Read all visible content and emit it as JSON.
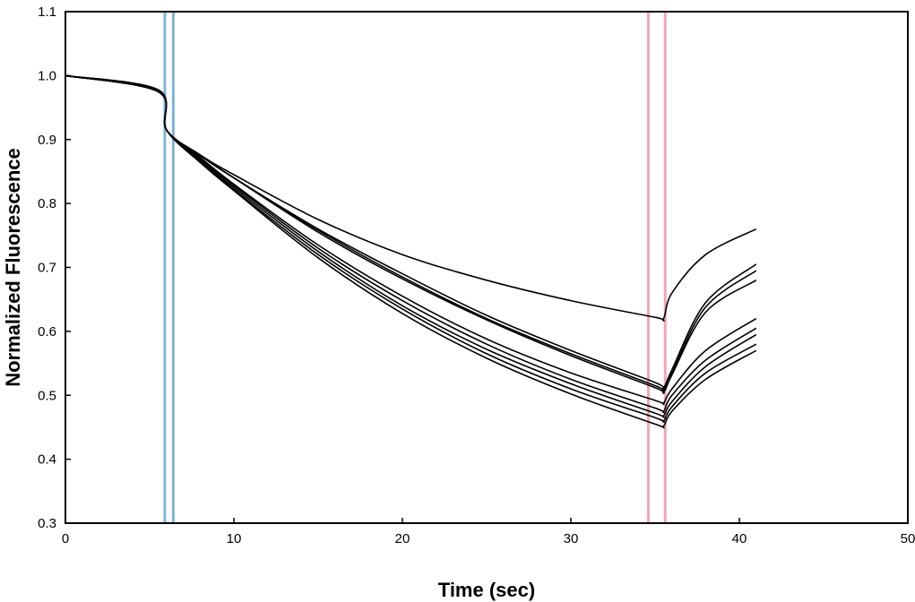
{
  "chart_data": {
    "type": "line",
    "title": "",
    "xlabel": "Time (sec)",
    "ylabel": "Normalized Fluorescence",
    "xlim": [
      0,
      50
    ],
    "ylim": [
      0.3,
      1.1
    ],
    "x_ticks": [
      0,
      10,
      20,
      30,
      40,
      50
    ],
    "y_ticks": [
      0.3,
      0.4,
      0.5,
      0.6,
      0.7,
      0.8,
      0.9,
      1.0,
      1.1
    ],
    "x_tick_labels": [
      "0",
      "10",
      "20",
      "30",
      "40",
      "50"
    ],
    "y_tick_labels": [
      "0.3",
      "0.4",
      "0.5",
      "0.6",
      "0.7",
      "0.8",
      "0.9",
      "1.0",
      "1.1"
    ],
    "grid": false,
    "legend": "none",
    "colors": {
      "series": "#000000",
      "blue_marker": "#7fb5d9",
      "pink_marker": "#f2a6b3"
    },
    "vertical_markers": [
      {
        "x": 5.9,
        "color": "#7fb5d9"
      },
      {
        "x": 6.4,
        "color": "#7fb5d9"
      },
      {
        "x": 34.6,
        "color": "#f2a6b3"
      },
      {
        "x": 35.6,
        "color": "#f2a6b3"
      }
    ],
    "series": [
      {
        "values": [
          [
            0,
            1.0
          ],
          [
            5.5,
            0.978
          ],
          [
            6,
            0.915
          ],
          [
            8,
            0.875
          ],
          [
            10,
            0.84
          ],
          [
            15,
            0.76
          ],
          [
            20,
            0.69
          ],
          [
            25,
            0.625
          ],
          [
            30,
            0.57
          ],
          [
            35,
            0.52
          ],
          [
            35.5,
            0.512
          ],
          [
            36,
            0.54
          ],
          [
            38,
            0.645
          ],
          [
            41,
            0.705
          ]
        ]
      },
      {
        "values": [
          [
            0,
            1.0
          ],
          [
            5.5,
            0.977
          ],
          [
            6,
            0.915
          ],
          [
            8,
            0.875
          ],
          [
            10,
            0.84
          ],
          [
            15,
            0.758
          ],
          [
            20,
            0.685
          ],
          [
            25,
            0.62
          ],
          [
            30,
            0.565
          ],
          [
            35,
            0.515
          ],
          [
            35.5,
            0.508
          ],
          [
            36,
            0.535
          ],
          [
            38,
            0.638
          ],
          [
            41,
            0.695
          ]
        ]
      },
      {
        "values": [
          [
            0,
            1.0
          ],
          [
            5.5,
            0.976
          ],
          [
            6,
            0.915
          ],
          [
            8,
            0.875
          ],
          [
            10,
            0.84
          ],
          [
            15,
            0.755
          ],
          [
            20,
            0.682
          ],
          [
            25,
            0.618
          ],
          [
            30,
            0.562
          ],
          [
            35,
            0.512
          ],
          [
            35.5,
            0.505
          ],
          [
            36,
            0.532
          ],
          [
            38,
            0.63
          ],
          [
            41,
            0.68
          ]
        ]
      },
      {
        "values": [
          [
            0,
            1.0
          ],
          [
            5.5,
            0.975
          ],
          [
            6,
            0.915
          ],
          [
            8,
            0.876
          ],
          [
            10,
            0.845
          ],
          [
            15,
            0.775
          ],
          [
            20,
            0.72
          ],
          [
            25,
            0.68
          ],
          [
            30,
            0.648
          ],
          [
            35,
            0.622
          ],
          [
            35.5,
            0.62
          ],
          [
            36,
            0.66
          ],
          [
            38,
            0.72
          ],
          [
            41,
            0.76
          ]
        ]
      },
      {
        "values": [
          [
            0,
            1.0
          ],
          [
            5.5,
            0.975
          ],
          [
            6,
            0.915
          ],
          [
            8,
            0.872
          ],
          [
            10,
            0.83
          ],
          [
            15,
            0.735
          ],
          [
            20,
            0.655
          ],
          [
            25,
            0.588
          ],
          [
            30,
            0.535
          ],
          [
            35,
            0.492
          ],
          [
            35.5,
            0.488
          ],
          [
            36,
            0.51
          ],
          [
            38,
            0.57
          ],
          [
            41,
            0.62
          ]
        ]
      },
      {
        "values": [
          [
            0,
            1.0
          ],
          [
            5.5,
            0.975
          ],
          [
            6,
            0.915
          ],
          [
            8,
            0.87
          ],
          [
            10,
            0.828
          ],
          [
            15,
            0.73
          ],
          [
            20,
            0.648
          ],
          [
            25,
            0.58
          ],
          [
            30,
            0.525
          ],
          [
            35,
            0.48
          ],
          [
            35.5,
            0.475
          ],
          [
            36,
            0.5
          ],
          [
            38,
            0.555
          ],
          [
            41,
            0.605
          ]
        ]
      },
      {
        "values": [
          [
            0,
            1.0
          ],
          [
            5.5,
            0.975
          ],
          [
            6,
            0.915
          ],
          [
            8,
            0.868
          ],
          [
            10,
            0.825
          ],
          [
            15,
            0.725
          ],
          [
            20,
            0.64
          ],
          [
            25,
            0.572
          ],
          [
            30,
            0.518
          ],
          [
            35,
            0.472
          ],
          [
            35.5,
            0.468
          ],
          [
            36,
            0.49
          ],
          [
            38,
            0.545
          ],
          [
            41,
            0.595
          ]
        ]
      },
      {
        "values": [
          [
            0,
            1.0
          ],
          [
            5.5,
            0.975
          ],
          [
            6,
            0.915
          ],
          [
            8,
            0.866
          ],
          [
            10,
            0.822
          ],
          [
            15,
            0.72
          ],
          [
            20,
            0.635
          ],
          [
            25,
            0.565
          ],
          [
            30,
            0.51
          ],
          [
            35,
            0.465
          ],
          [
            35.5,
            0.46
          ],
          [
            36,
            0.482
          ],
          [
            38,
            0.535
          ],
          [
            41,
            0.58
          ]
        ]
      },
      {
        "values": [
          [
            0,
            1.0
          ],
          [
            5.5,
            0.975
          ],
          [
            6,
            0.915
          ],
          [
            8,
            0.864
          ],
          [
            10,
            0.82
          ],
          [
            15,
            0.715
          ],
          [
            20,
            0.628
          ],
          [
            25,
            0.558
          ],
          [
            30,
            0.502
          ],
          [
            35,
            0.455
          ],
          [
            35.5,
            0.452
          ],
          [
            36,
            0.475
          ],
          [
            38,
            0.525
          ],
          [
            41,
            0.57
          ]
        ]
      }
    ]
  }
}
